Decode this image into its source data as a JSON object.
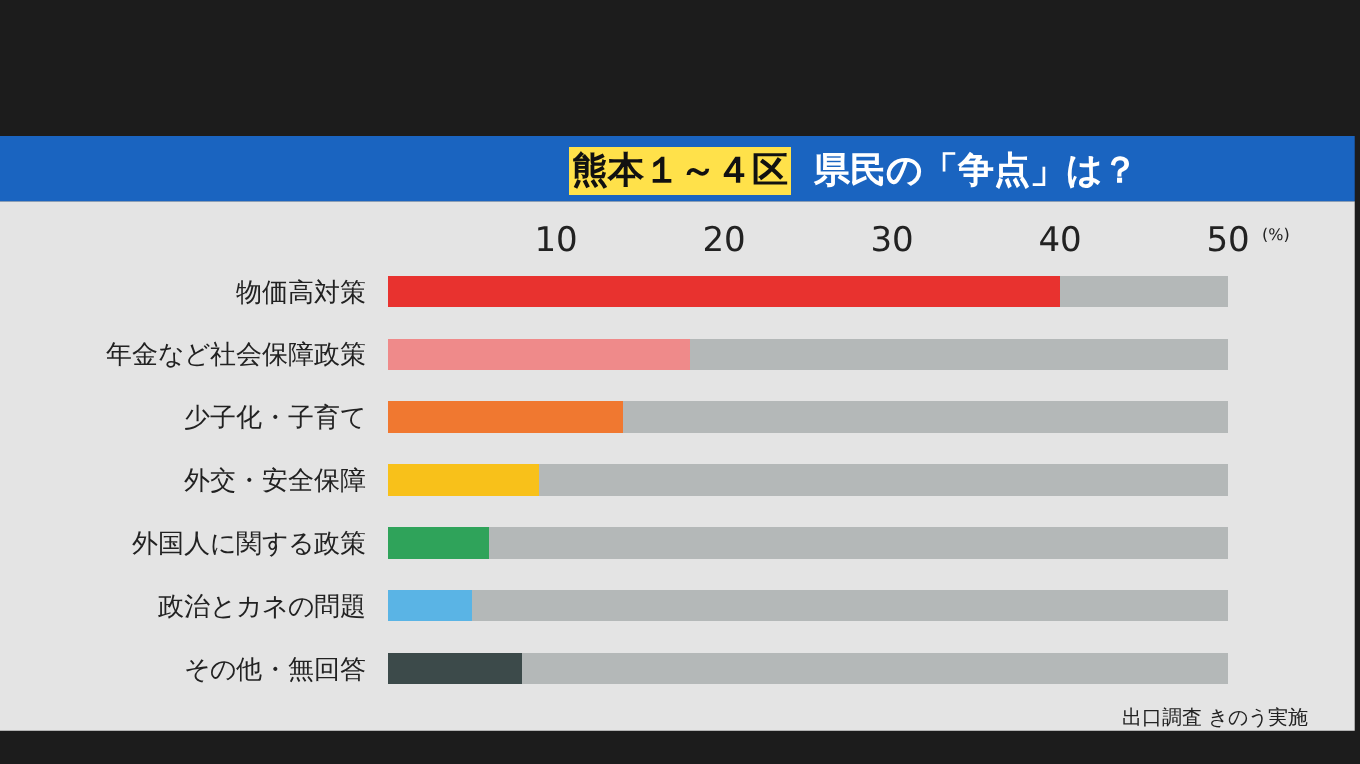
{
  "chart_data": {
    "type": "bar",
    "orientation": "horizontal",
    "stacked": true,
    "title": "熊本１～４区",
    "subtitle": "県民の「争点」は？",
    "xlabel": "(%)",
    "categories": [
      "物価高対策",
      "年金など社会保障政策",
      "少子化・子育て",
      "外交・安全保障",
      "外国人に関する政策",
      "政治とカネの問題",
      "その他・無回答"
    ],
    "series": [
      {
        "colors": [
          "#e8322f",
          "#ef8a8a",
          "#f07830",
          "#f8c11a",
          "#2fa35a",
          "#5ab4e5",
          "#3c4a4a"
        ],
        "values": [
          40,
          18,
          14,
          9,
          6,
          5,
          8
        ]
      },
      {
        "color": "#b4b8b8",
        "values": [
          10,
          32,
          36,
          41,
          44,
          45,
          42
        ]
      }
    ],
    "xlim": [
      0,
      50
    ],
    "xticks": [
      10,
      20,
      30,
      40,
      50
    ],
    "annotations": [
      "出口調査 きのう実施"
    ]
  }
}
